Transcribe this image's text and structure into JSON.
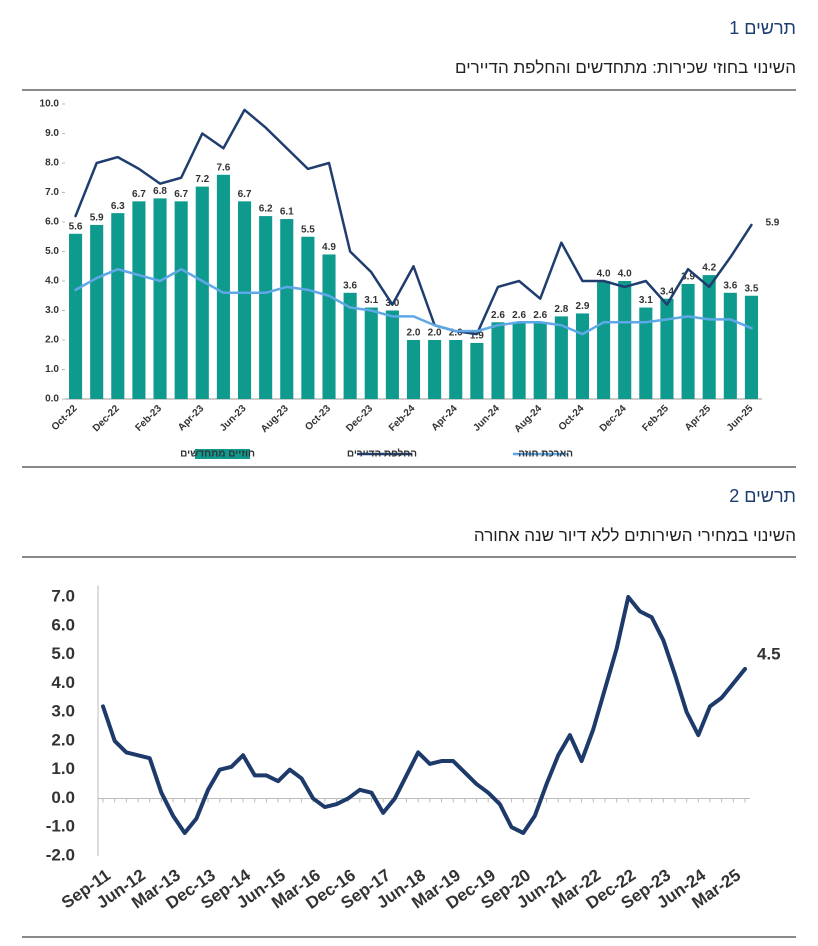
{
  "header1": {
    "number": "תרשים 1",
    "title": "השינוי בחוזי שכירות: מתחדשים והחלפת הדיירים"
  },
  "header2": {
    "number": "תרשים 2",
    "title": "השינוי במחירי השירותים ללא דיור שנה אחורה"
  },
  "chart_data": [
    {
      "type": "bar",
      "categories": [
        "Oct-22",
        null,
        "Dec-22",
        null,
        "Feb-23",
        null,
        "Apr-23",
        null,
        "Jun-23",
        null,
        "Aug-23",
        null,
        "Oct-23",
        null,
        "Dec-23",
        null,
        "Feb-24",
        null,
        "Apr-24",
        null,
        "Jun-24",
        null,
        "Aug-24",
        null,
        "Oct-24",
        null,
        "Dec-24",
        null,
        "Feb-25",
        null,
        "Apr-25",
        null,
        "Jun-25"
      ],
      "series": [
        {
          "name": "חוזיים מתחדשים",
          "type": "bar",
          "color": "#0f9a8e",
          "values": [
            5.6,
            5.9,
            6.3,
            6.7,
            6.8,
            6.7,
            7.2,
            7.6,
            6.7,
            6.2,
            6.1,
            5.5,
            4.9,
            3.6,
            3.1,
            3.0,
            2.0,
            2.0,
            2.0,
            1.9,
            2.6,
            2.6,
            2.6,
            2.8,
            2.9,
            4.0,
            4.0,
            3.1,
            3.4,
            3.9,
            4.2,
            3.6,
            3.5
          ],
          "value_labels": [
            "5.6",
            "5.9",
            "6.3",
            "6.7",
            "6.8",
            "6.7",
            "7.2",
            "7.6",
            "6.7",
            "6.2",
            "6.1",
            "5.5",
            "4.9",
            "3.6",
            "3.1",
            "3.0",
            "2.0",
            "2.0",
            "2.0",
            "1.9",
            "2.6",
            "2.6",
            "2.6",
            "2.8",
            "2.9",
            "4.0",
            "4.0",
            "3.1",
            "3.4",
            "3.9",
            "4.2",
            "3.6",
            "3.5"
          ]
        },
        {
          "name": "החלפת הדיירים",
          "type": "line",
          "color": "#1f3d6e",
          "end_label": true,
          "values": [
            6.2,
            8.0,
            8.2,
            7.8,
            7.3,
            7.5,
            9.0,
            8.5,
            9.8,
            9.2,
            8.5,
            7.8,
            8.0,
            5.0,
            4.3,
            3.2,
            4.5,
            2.5,
            2.3,
            2.2,
            3.8,
            4.0,
            3.4,
            5.3,
            4.0,
            4.0,
            3.8,
            4.0,
            3.2,
            4.4,
            3.8,
            4.8,
            5.9
          ]
        },
        {
          "name": "הארכת חוזה",
          "type": "line",
          "color": "#5fa8e8",
          "values": [
            3.7,
            4.1,
            4.4,
            4.2,
            4.0,
            4.4,
            4.0,
            3.6,
            3.6,
            3.6,
            3.8,
            3.7,
            3.5,
            3.1,
            3.0,
            2.8,
            2.8,
            2.5,
            2.3,
            2.3,
            2.5,
            2.6,
            2.6,
            2.5,
            2.2,
            2.6,
            2.6,
            2.6,
            2.7,
            2.8,
            2.7,
            2.7,
            2.4
          ]
        }
      ],
      "ylim": [
        0,
        10
      ],
      "yticks": [
        {
          "value": 0,
          "label": "0.0"
        },
        {
          "value": 1,
          "label": "1.0"
        },
        {
          "value": 2,
          "label": "2.0"
        },
        {
          "value": 3,
          "label": "3.0"
        },
        {
          "value": 4,
          "label": "4.0"
        },
        {
          "value": 5,
          "label": "5.0"
        },
        {
          "value": 6,
          "label": "6.0"
        },
        {
          "value": 7,
          "label": "7.0"
        },
        {
          "value": 8,
          "label": "8.0"
        },
        {
          "value": 9,
          "label": "9.0"
        },
        {
          "value": 10,
          "label": "10.0"
        }
      ],
      "legend": "bottom"
    },
    {
      "type": "line",
      "categories": [
        "Sep-11",
        null,
        null,
        "Jun-12",
        null,
        null,
        "Mar-13",
        null,
        null,
        "Dec-13",
        null,
        null,
        "Sep-14",
        null,
        null,
        "Jun-15",
        null,
        null,
        "Mar-16",
        null,
        null,
        "Dec-16",
        null,
        null,
        "Sep-17",
        null,
        null,
        "Jun-18",
        null,
        null,
        "Mar-19",
        null,
        null,
        "Dec-19",
        null,
        null,
        "Sep-20",
        null,
        null,
        "Jun-21",
        null,
        null,
        "Mar-22",
        null,
        null,
        "Dec-22",
        null,
        null,
        "Sep-23",
        null,
        null,
        "Jun-24",
        null,
        null,
        "Mar-25",
        null
      ],
      "color": "#1d3a6b",
      "end_label": true,
      "values": [
        3.2,
        2.0,
        1.6,
        1.5,
        1.4,
        0.2,
        -0.6,
        -1.2,
        -0.7,
        0.3,
        1.0,
        1.1,
        1.5,
        0.8,
        0.8,
        0.6,
        1.0,
        0.7,
        0.0,
        -0.3,
        -0.2,
        0.0,
        0.3,
        0.2,
        -0.5,
        0.0,
        0.8,
        1.6,
        1.2,
        1.3,
        1.3,
        0.9,
        0.5,
        0.2,
        -0.2,
        -1.0,
        -1.2,
        -0.6,
        0.5,
        1.5,
        2.2,
        1.3,
        2.4,
        3.8,
        5.2,
        7.0,
        6.5,
        6.3,
        5.5,
        4.3,
        3.0,
        2.2,
        3.2,
        3.5,
        4.0,
        4.5
      ],
      "ylim": [
        -2,
        7.4
      ],
      "yticks": [
        {
          "value": -2,
          "label": "-2.0"
        },
        {
          "value": -1,
          "label": "-1.0"
        },
        {
          "value": 0,
          "label": "0.0"
        },
        {
          "value": 1,
          "label": "1.0"
        },
        {
          "value": 2,
          "label": "2.0"
        },
        {
          "value": 3,
          "label": "3.0"
        },
        {
          "value": 4,
          "label": "4.0"
        },
        {
          "value": 5,
          "label": "5.0"
        },
        {
          "value": 6,
          "label": "6.0"
        },
        {
          "value": 7,
          "label": "7.0"
        }
      ]
    }
  ]
}
